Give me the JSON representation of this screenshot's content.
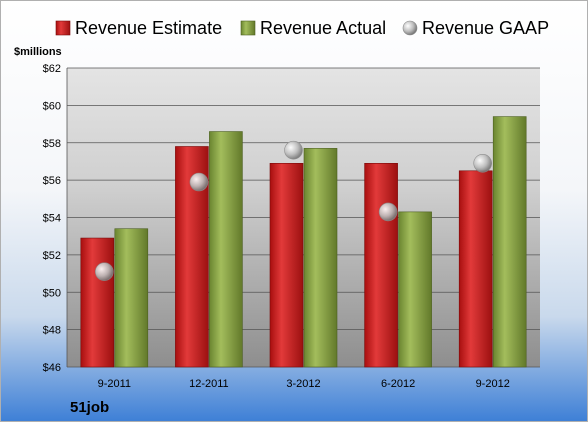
{
  "chart_data": {
    "type": "bar",
    "title": "",
    "company": "51job",
    "ylabel": "$millions",
    "ylim": [
      46,
      62
    ],
    "ytick_step": 2,
    "ytick_prefix": "$",
    "grid": true,
    "legend_position": "top",
    "categories": [
      "9-2011",
      "12-2011",
      "3-2012",
      "6-2012",
      "9-2012"
    ],
    "series": [
      {
        "name": "Revenue Estimate",
        "type": "bar",
        "color": "#c81e1e",
        "values": [
          52.9,
          57.8,
          56.9,
          56.9,
          56.5
        ]
      },
      {
        "name": "Revenue Actual",
        "type": "bar",
        "color": "#7f9a3c",
        "values": [
          53.4,
          58.6,
          57.7,
          54.3,
          59.4
        ]
      },
      {
        "name": "Revenue GAAP",
        "type": "marker",
        "color": "#b8b8b8",
        "values": [
          51.1,
          55.9,
          57.6,
          54.3,
          56.9
        ]
      }
    ]
  }
}
